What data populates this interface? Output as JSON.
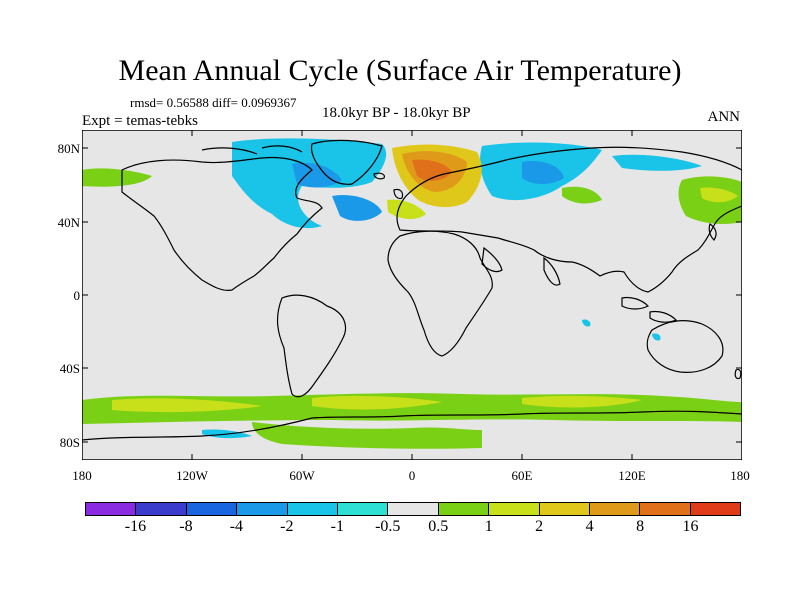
{
  "title": "Mean Annual Cycle (Surface Air Temperature)",
  "stats": "rmsd= 0.56588 diff= 0.0969367",
  "expt": "Expt = temas-tebks",
  "period": "18.0kyr BP - 18.0kyr BP",
  "season": "ANN",
  "y_axis_labels": [
    "80N",
    "40N",
    "0",
    "40S",
    "80S"
  ],
  "x_axis_labels": [
    "180",
    "120W",
    "60W",
    "0",
    "60E",
    "120E",
    "180"
  ],
  "colorbar": {
    "colors": [
      "#8a2be2",
      "#3c3ccc",
      "#1a66e0",
      "#1a99e8",
      "#1ac4e8",
      "#2ee0d4",
      "#e6e6e6",
      "#7ad014",
      "#c8e01a",
      "#e0c81a",
      "#e09a1a",
      "#e0701a",
      "#e03c1a"
    ],
    "labels": [
      "-16",
      "-8",
      "-4",
      "-2",
      "-1",
      "-0.5",
      "0.5",
      "1",
      "2",
      "4",
      "8",
      "16"
    ]
  }
}
